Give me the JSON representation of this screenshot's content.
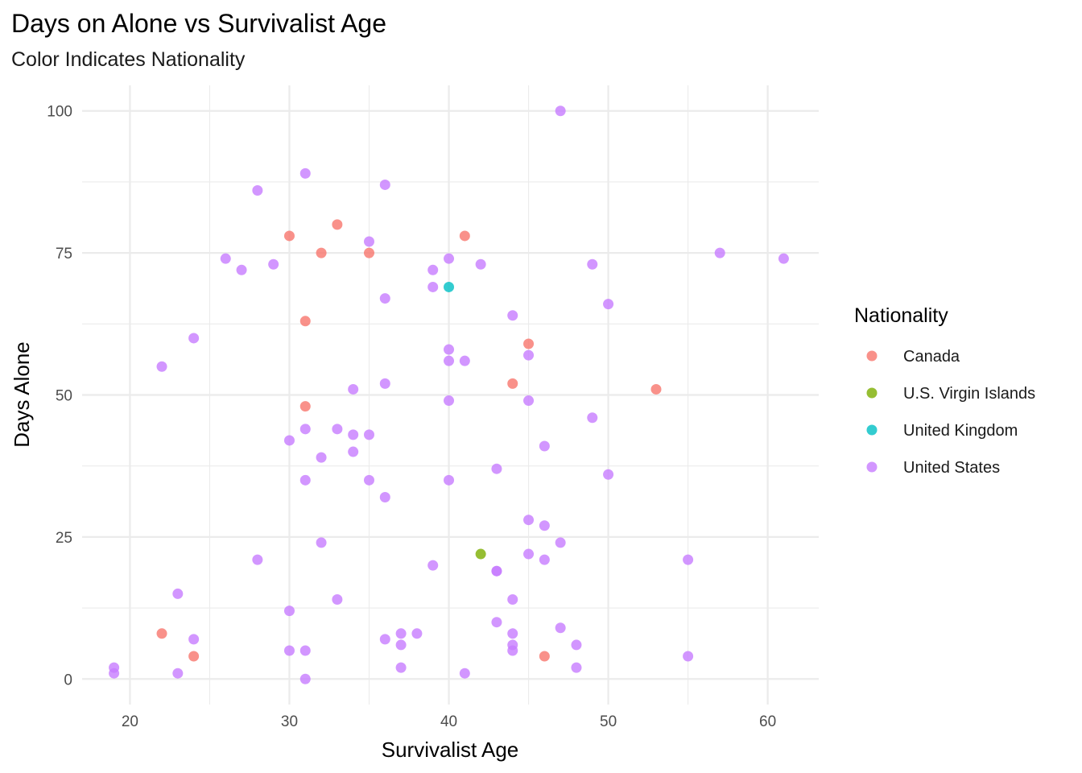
{
  "chart_data": {
    "type": "scatter",
    "title": "Days on Alone vs Survivalist Age",
    "subtitle": "Color Indicates Nationality",
    "xlabel": "Survivalist Age",
    "ylabel": "Days Alone",
    "xlim": [
      17,
      63.2
    ],
    "ylim": [
      -4.5,
      104.5
    ],
    "x_ticks": [
      20,
      30,
      40,
      50,
      60
    ],
    "y_ticks": [
      0,
      25,
      50,
      75,
      100
    ],
    "x_minor": [
      25,
      35,
      45,
      55
    ],
    "y_minor": [
      12.5,
      37.5,
      62.5,
      87.5
    ],
    "grid": true,
    "legend_title": "Nationality",
    "legend_position": "right",
    "series": [
      {
        "name": "Canada",
        "color": "#F8766D",
        "points": [
          [
            22,
            8
          ],
          [
            24,
            4
          ],
          [
            30,
            78
          ],
          [
            31,
            63
          ],
          [
            31,
            48
          ],
          [
            32,
            75
          ],
          [
            33,
            80
          ],
          [
            35,
            75
          ],
          [
            41,
            78
          ],
          [
            44,
            52
          ],
          [
            45,
            59
          ],
          [
            46,
            4
          ],
          [
            53,
            51
          ]
        ]
      },
      {
        "name": "U.S. Virgin Islands",
        "color": "#7CAE00",
        "points": [
          [
            42,
            22
          ]
        ]
      },
      {
        "name": "United Kingdom",
        "color": "#00BFC4",
        "points": [
          [
            40,
            69
          ]
        ]
      },
      {
        "name": "United States",
        "color": "#C77CFF",
        "points": [
          [
            19,
            2
          ],
          [
            19,
            1
          ],
          [
            22,
            55
          ],
          [
            23,
            15
          ],
          [
            23,
            1
          ],
          [
            24,
            60
          ],
          [
            24,
            7
          ],
          [
            26,
            74
          ],
          [
            27,
            72
          ],
          [
            28,
            86
          ],
          [
            28,
            21
          ],
          [
            29,
            73
          ],
          [
            30,
            42
          ],
          [
            30,
            12
          ],
          [
            30,
            5
          ],
          [
            31,
            89
          ],
          [
            31,
            44
          ],
          [
            31,
            35
          ],
          [
            31,
            5
          ],
          [
            31,
            0
          ],
          [
            32,
            39
          ],
          [
            32,
            24
          ],
          [
            33,
            44
          ],
          [
            33,
            14
          ],
          [
            34,
            51
          ],
          [
            34,
            43
          ],
          [
            34,
            40
          ],
          [
            35,
            77
          ],
          [
            35,
            43
          ],
          [
            35,
            35
          ],
          [
            36,
            87
          ],
          [
            36,
            67
          ],
          [
            36,
            52
          ],
          [
            36,
            32
          ],
          [
            36,
            7
          ],
          [
            37,
            8
          ],
          [
            37,
            6
          ],
          [
            37,
            2
          ],
          [
            38,
            8
          ],
          [
            39,
            72
          ],
          [
            39,
            69
          ],
          [
            39,
            20
          ],
          [
            40,
            74
          ],
          [
            40,
            58
          ],
          [
            40,
            56
          ],
          [
            40,
            49
          ],
          [
            40,
            35
          ],
          [
            41,
            56
          ],
          [
            41,
            1
          ],
          [
            42,
            73
          ],
          [
            43,
            37
          ],
          [
            43,
            19
          ],
          [
            43,
            19
          ],
          [
            43,
            10
          ],
          [
            44,
            64
          ],
          [
            44,
            14
          ],
          [
            44,
            8
          ],
          [
            44,
            6
          ],
          [
            44,
            5
          ],
          [
            45,
            57
          ],
          [
            45,
            49
          ],
          [
            45,
            28
          ],
          [
            45,
            22
          ],
          [
            46,
            41
          ],
          [
            46,
            27
          ],
          [
            46,
            21
          ],
          [
            47,
            100
          ],
          [
            47,
            24
          ],
          [
            47,
            9
          ],
          [
            48,
            6
          ],
          [
            48,
            2
          ],
          [
            49,
            73
          ],
          [
            49,
            46
          ],
          [
            50,
            66
          ],
          [
            50,
            36
          ],
          [
            55,
            21
          ],
          [
            55,
            4
          ],
          [
            57,
            75
          ],
          [
            61,
            74
          ]
        ]
      }
    ]
  }
}
